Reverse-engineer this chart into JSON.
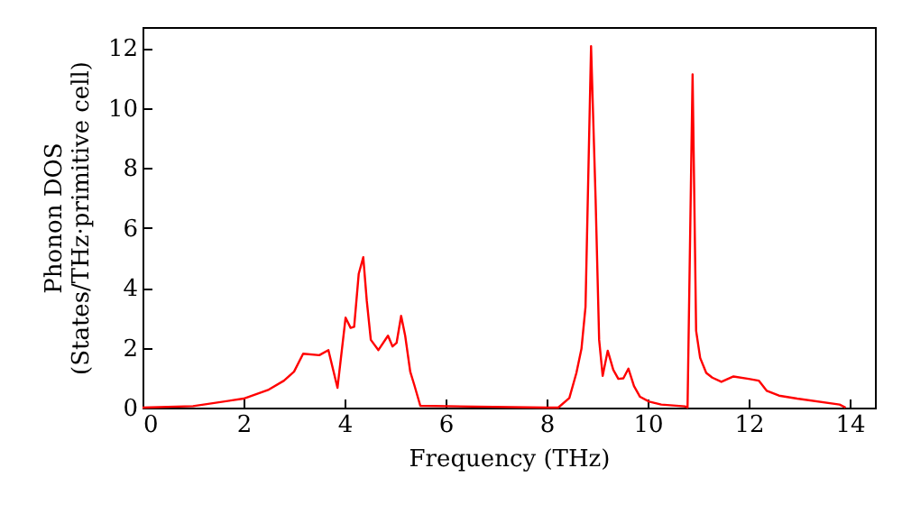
{
  "chart_data": {
    "type": "line",
    "xlabel": "Frequency (THz)",
    "ylabel": "Phonon DOS\n(States/THz·primitive cell)",
    "x": [
      0,
      1,
      2,
      2.5,
      2.8,
      3.0,
      3.18,
      3.5,
      3.68,
      3.86,
      4.02,
      4.12,
      4.19,
      4.28,
      4.37,
      4.44,
      4.52,
      4.67,
      4.86,
      4.95,
      5.03,
      5.12,
      5.2,
      5.3,
      5.38,
      5.5,
      8.0,
      8.23,
      8.45,
      8.59,
      8.69,
      8.77,
      8.88,
      8.97,
      9.04,
      9.11,
      9.21,
      9.32,
      9.42,
      9.52,
      9.62,
      9.73,
      9.85,
      10.03,
      10.27,
      10.74,
      10.79,
      10.89,
      10.96,
      11.04,
      11.16,
      11.28,
      11.46,
      11.7,
      12.0,
      12.2,
      12.36,
      12.6,
      12.96,
      13.8,
      13.92
    ],
    "series": [
      {
        "color": "#ff0000",
        "values": [
          0,
          0.05,
          0.3,
          0.6,
          0.9,
          1.2,
          1.8,
          1.75,
          1.92,
          0.66,
          3.0,
          2.66,
          2.7,
          4.46,
          5.02,
          3.56,
          2.26,
          1.92,
          2.4,
          2.04,
          2.16,
          3.06,
          2.4,
          1.2,
          0.76,
          0.06,
          0,
          0,
          0.32,
          1.16,
          1.96,
          3.36,
          12.06,
          6.96,
          2.26,
          1.06,
          1.9,
          1.26,
          0.96,
          0.98,
          1.3,
          0.72,
          0.36,
          0.2,
          0.1,
          0.04,
          0,
          11.12,
          2.56,
          1.66,
          1.16,
          1.0,
          0.86,
          1.04,
          0.96,
          0.9,
          0.56,
          0.4,
          0.3,
          0.1,
          0
        ]
      }
    ],
    "xlim": [
      0,
      14.5
    ],
    "xticks": [
      0,
      2,
      4,
      6,
      8,
      10,
      12,
      14
    ],
    "ylim": [
      0,
      12.7
    ],
    "yticks": [
      0,
      2,
      4,
      6,
      8,
      10,
      12
    ],
    "grid": false,
    "line_style": "solid",
    "marker": "none"
  }
}
